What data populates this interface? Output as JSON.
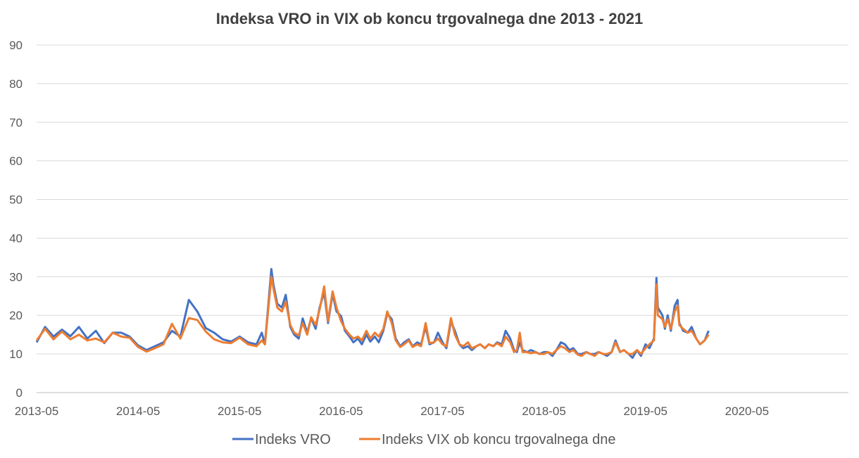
{
  "chart_data": {
    "type": "line",
    "title": "Indeksa VRO in VIX ob koncu trgovalnega dne 2013 - 2021",
    "xlabel": "",
    "ylabel": "",
    "ylim": [
      0,
      90
    ],
    "yticks": [
      0,
      10,
      20,
      30,
      40,
      50,
      60,
      70,
      80,
      90
    ],
    "xlim": [
      "2013-05",
      "2021-05"
    ],
    "xticks": [
      "2013-05",
      "2014-05",
      "2015-05",
      "2016-05",
      "2017-05",
      "2018-05",
      "2019-05",
      "2020-05"
    ],
    "grid": "horizontal",
    "legend": "bottom",
    "colors": [
      "#4472c4",
      "#ed7d31"
    ],
    "series": [
      {
        "name": "Indeks VRO",
        "points": [
          [
            "2013-05",
            13
          ],
          [
            "2013-06",
            17
          ],
          [
            "2013-07",
            14.5
          ],
          [
            "2013-08",
            16.3
          ],
          [
            "2013-09",
            14.6
          ],
          [
            "2013-10",
            17
          ],
          [
            "2013-11",
            14
          ],
          [
            "2013-12",
            16
          ],
          [
            "2014-01",
            12.8
          ],
          [
            "2014-02",
            15.5
          ],
          [
            "2014-03",
            15.5
          ],
          [
            "2014-04",
            14.5
          ],
          [
            "2014-05",
            12.2
          ],
          [
            "2014-06",
            11
          ],
          [
            "2014-07",
            12
          ],
          [
            "2014-08",
            13
          ],
          [
            "2014-09",
            16
          ],
          [
            "2014-10",
            14.5
          ],
          [
            "2014-11",
            24
          ],
          [
            "2014-12",
            21
          ],
          [
            "2015-01",
            16.7
          ],
          [
            "2015-02",
            15.5
          ],
          [
            "2015-03",
            13.8
          ],
          [
            "2015-04",
            13.2
          ],
          [
            "2015-05",
            14.5
          ],
          [
            "2015-06",
            13
          ],
          [
            "2015-07",
            12.5
          ],
          [
            "2015-07-20",
            15.5
          ],
          [
            "2015-08-01",
            12.5
          ],
          [
            "2015-08-24",
            32
          ],
          [
            "2015-09-01",
            28
          ],
          [
            "2015-09-15",
            23
          ],
          [
            "2015-10-01",
            22
          ],
          [
            "2015-10-15",
            25.3
          ],
          [
            "2015-11-01",
            17
          ],
          [
            "2015-11-15",
            15
          ],
          [
            "2015-12-01",
            14
          ],
          [
            "2015-12-15",
            19.2
          ],
          [
            "2016-01-01",
            15.5
          ],
          [
            "2016-01-15",
            19.3
          ],
          [
            "2016-02-01",
            16.5
          ],
          [
            "2016-02-15",
            22
          ],
          [
            "2016-03-01",
            26
          ],
          [
            "2016-03-15",
            18
          ],
          [
            "2016-04-01",
            25.6
          ],
          [
            "2016-04-15",
            21
          ],
          [
            "2016-05-01",
            19.8
          ],
          [
            "2016-05-15",
            16
          ],
          [
            "2016-06-01",
            14.5
          ],
          [
            "2016-06-15",
            13
          ],
          [
            "2016-07-01",
            14
          ],
          [
            "2016-07-15",
            12.5
          ],
          [
            "2016-08-01",
            15
          ],
          [
            "2016-08-15",
            13.2
          ],
          [
            "2016-09-01",
            14.5
          ],
          [
            "2016-09-15",
            13
          ],
          [
            "2016-10-01",
            16
          ],
          [
            "2016-10-15",
            20.5
          ],
          [
            "2016-11-01",
            19
          ],
          [
            "2016-11-15",
            14
          ],
          [
            "2016-12-01",
            12
          ],
          [
            "2016-12-15",
            13
          ],
          [
            "2017-01-01",
            13.8
          ],
          [
            "2017-01-15",
            12
          ],
          [
            "2017-02-01",
            13
          ],
          [
            "2017-02-15",
            12.5
          ],
          [
            "2017-03-01",
            17
          ],
          [
            "2017-03-15",
            12.5
          ],
          [
            "2017-04-01",
            13
          ],
          [
            "2017-04-15",
            15.5
          ],
          [
            "2017-05-01",
            13
          ],
          [
            "2017-05-15",
            11.5
          ],
          [
            "2017-06-01",
            18.5
          ],
          [
            "2017-06-15",
            16
          ],
          [
            "2017-07-01",
            12.5
          ],
          [
            "2017-07-15",
            11.5
          ],
          [
            "2017-08-01",
            12
          ],
          [
            "2017-08-15",
            11
          ],
          [
            "2017-09-01",
            12
          ],
          [
            "2017-09-15",
            12.5
          ],
          [
            "2017-10-01",
            11.5
          ],
          [
            "2017-10-15",
            12.5
          ],
          [
            "2017-11-01",
            12
          ],
          [
            "2017-11-15",
            13
          ],
          [
            "2017-12-01",
            12.5
          ],
          [
            "2017-12-15",
            16
          ],
          [
            "2018-01-01",
            14
          ],
          [
            "2018-01-15",
            11
          ],
          [
            "2018-01-25",
            10.5
          ],
          [
            "2018-02-05",
            13
          ],
          [
            "2018-02-15",
            11
          ],
          [
            "2018-03-01",
            10.5
          ],
          [
            "2018-03-15",
            11
          ],
          [
            "2018-04-01",
            10.5
          ],
          [
            "2018-04-15",
            10
          ],
          [
            "2018-05-01",
            10.5
          ],
          [
            "2018-05-15",
            10.5
          ],
          [
            "2018-06-01",
            9.5
          ],
          [
            "2018-06-15",
            11
          ],
          [
            "2018-07-01",
            13
          ],
          [
            "2018-07-15",
            12.5
          ],
          [
            "2018-08-01",
            11
          ],
          [
            "2018-08-15",
            11.5
          ],
          [
            "2018-09-01",
            10
          ],
          [
            "2018-09-15",
            10
          ],
          [
            "2018-10-01",
            10.5
          ],
          [
            "2018-10-15",
            10
          ],
          [
            "2018-11-01",
            10
          ],
          [
            "2018-11-15",
            10.5
          ],
          [
            "2018-12-01",
            10
          ],
          [
            "2018-12-15",
            9.5
          ],
          [
            "2019-01-01",
            10.5
          ],
          [
            "2019-01-15",
            13.5
          ],
          [
            "2019-02-01",
            10.5
          ],
          [
            "2019-02-15",
            11
          ],
          [
            "2019-03-01",
            10
          ],
          [
            "2019-03-15",
            9
          ],
          [
            "2019-04-01",
            11
          ],
          [
            "2019-04-15",
            9.5
          ],
          [
            "2019-05-01",
            12.5
          ],
          [
            "2019-05-15",
            11.5
          ],
          [
            "2019-06-01",
            14
          ],
          [
            "2019-06-10",
            29.7
          ],
          [
            "2019-06-15",
            22
          ],
          [
            "2019-07-01",
            20
          ],
          [
            "2019-07-10",
            16.5
          ],
          [
            "2019-07-20",
            20
          ],
          [
            "2019-08-01",
            16
          ],
          [
            "2019-08-15",
            22.5
          ],
          [
            "2019-08-25",
            24
          ],
          [
            "2019-09-01",
            18
          ],
          [
            "2019-09-15",
            16
          ],
          [
            "2019-10-01",
            15.5
          ],
          [
            "2019-10-15",
            17
          ],
          [
            "2019-11-01",
            14
          ],
          [
            "2019-11-15",
            12.5
          ],
          [
            "2019-12-01",
            13.5
          ],
          [
            "2019-12-15",
            16
          ]
        ]
      },
      {
        "name": "Indeks VIX ob koncu trgovalnega dne",
        "points": [
          [
            "2013-05",
            13.5
          ],
          [
            "2013-06",
            16.5
          ],
          [
            "2013-07",
            13.8
          ],
          [
            "2013-08",
            15.8
          ],
          [
            "2013-09",
            13.8
          ],
          [
            "2013-10",
            15
          ],
          [
            "2013-11",
            13.5
          ],
          [
            "2013-12",
            14
          ],
          [
            "2014-01",
            13
          ],
          [
            "2014-02",
            15.5
          ],
          [
            "2014-03",
            14.5
          ],
          [
            "2014-04",
            14.2
          ],
          [
            "2014-05",
            11.8
          ],
          [
            "2014-06",
            10.6
          ],
          [
            "2014-07",
            11.5
          ],
          [
            "2014-08",
            12.5
          ],
          [
            "2014-09",
            17.8
          ],
          [
            "2014-10",
            14
          ],
          [
            "2014-11",
            19.3
          ],
          [
            "2014-12",
            18.8
          ],
          [
            "2015-01",
            15.8
          ],
          [
            "2015-02",
            13.8
          ],
          [
            "2015-03",
            13
          ],
          [
            "2015-04",
            12.8
          ],
          [
            "2015-05",
            14.2
          ],
          [
            "2015-06",
            12.5
          ],
          [
            "2015-07",
            12
          ],
          [
            "2015-07-20",
            13.5
          ],
          [
            "2015-08-01",
            12.5
          ],
          [
            "2015-08-24",
            30
          ],
          [
            "2015-09-01",
            27
          ],
          [
            "2015-09-15",
            22
          ],
          [
            "2015-10-01",
            21
          ],
          [
            "2015-10-15",
            23.5
          ],
          [
            "2015-11-01",
            17.5
          ],
          [
            "2015-11-15",
            15.5
          ],
          [
            "2015-12-01",
            14.8
          ],
          [
            "2015-12-15",
            18
          ],
          [
            "2016-01-01",
            15
          ],
          [
            "2016-01-15",
            19.5
          ],
          [
            "2016-02-01",
            17.5
          ],
          [
            "2016-02-15",
            21.5
          ],
          [
            "2016-03-01",
            27.5
          ],
          [
            "2016-03-15",
            18.5
          ],
          [
            "2016-04-01",
            26.2
          ],
          [
            "2016-04-15",
            22
          ],
          [
            "2016-05-01",
            18.5
          ],
          [
            "2016-05-15",
            16.5
          ],
          [
            "2016-06-01",
            15
          ],
          [
            "2016-06-15",
            14
          ],
          [
            "2016-07-01",
            14.5
          ],
          [
            "2016-07-15",
            13.5
          ],
          [
            "2016-08-01",
            16
          ],
          [
            "2016-08-15",
            14
          ],
          [
            "2016-09-01",
            15.5
          ],
          [
            "2016-09-15",
            14.5
          ],
          [
            "2016-10-01",
            16.5
          ],
          [
            "2016-10-15",
            21
          ],
          [
            "2016-11-01",
            18
          ],
          [
            "2016-11-15",
            13.5
          ],
          [
            "2016-12-01",
            11.8
          ],
          [
            "2016-12-15",
            12.5
          ],
          [
            "2017-01-01",
            13.5
          ],
          [
            "2017-01-15",
            11.8
          ],
          [
            "2017-02-01",
            12.5
          ],
          [
            "2017-02-15",
            12
          ],
          [
            "2017-03-01",
            18
          ],
          [
            "2017-03-15",
            12.8
          ],
          [
            "2017-04-01",
            13
          ],
          [
            "2017-04-15",
            14
          ],
          [
            "2017-05-01",
            12.5
          ],
          [
            "2017-05-15",
            12
          ],
          [
            "2017-06-01",
            19.3
          ],
          [
            "2017-06-15",
            15
          ],
          [
            "2017-07-01",
            12.5
          ],
          [
            "2017-07-15",
            12
          ],
          [
            "2017-08-01",
            13
          ],
          [
            "2017-08-15",
            11.5
          ],
          [
            "2017-09-01",
            12
          ],
          [
            "2017-09-15",
            12.5
          ],
          [
            "2017-10-01",
            11.5
          ],
          [
            "2017-10-15",
            12.5
          ],
          [
            "2017-11-01",
            12
          ],
          [
            "2017-11-15",
            12.8
          ],
          [
            "2017-12-01",
            12
          ],
          [
            "2017-12-15",
            14.5
          ],
          [
            "2018-01-01",
            13
          ],
          [
            "2018-01-15",
            10.5
          ],
          [
            "2018-01-25",
            11
          ],
          [
            "2018-02-05",
            15.5
          ],
          [
            "2018-02-15",
            10.5
          ],
          [
            "2018-03-01",
            10.5
          ],
          [
            "2018-03-15",
            10.2
          ],
          [
            "2018-04-01",
            10.5
          ],
          [
            "2018-04-15",
            10
          ],
          [
            "2018-05-01",
            10
          ],
          [
            "2018-05-15",
            10.5
          ],
          [
            "2018-06-01",
            10
          ],
          [
            "2018-06-15",
            11
          ],
          [
            "2018-07-01",
            12
          ],
          [
            "2018-07-15",
            11.5
          ],
          [
            "2018-08-01",
            10.5
          ],
          [
            "2018-08-15",
            11
          ],
          [
            "2018-09-01",
            9.8
          ],
          [
            "2018-09-15",
            9.5
          ],
          [
            "2018-10-01",
            10.5
          ],
          [
            "2018-10-15",
            10
          ],
          [
            "2018-11-01",
            9.5
          ],
          [
            "2018-11-15",
            10.5
          ],
          [
            "2018-12-01",
            10
          ],
          [
            "2018-12-15",
            10
          ],
          [
            "2019-01-01",
            10.5
          ],
          [
            "2019-01-15",
            13
          ],
          [
            "2019-02-01",
            10.5
          ],
          [
            "2019-02-15",
            11
          ],
          [
            "2019-03-01",
            10
          ],
          [
            "2019-03-15",
            10
          ],
          [
            "2019-04-01",
            11
          ],
          [
            "2019-04-15",
            10
          ],
          [
            "2019-05-01",
            11.5
          ],
          [
            "2019-05-15",
            12.5
          ],
          [
            "2019-06-01",
            13.5
          ],
          [
            "2019-06-10",
            28
          ],
          [
            "2019-06-15",
            20
          ],
          [
            "2019-07-01",
            19
          ],
          [
            "2019-07-10",
            17
          ],
          [
            "2019-07-20",
            19
          ],
          [
            "2019-08-01",
            16.5
          ],
          [
            "2019-08-15",
            21
          ],
          [
            "2019-08-25",
            22.5
          ],
          [
            "2019-09-01",
            17.5
          ],
          [
            "2019-09-15",
            16.5
          ],
          [
            "2019-10-01",
            15.5
          ],
          [
            "2019-10-15",
            16
          ],
          [
            "2019-11-01",
            14
          ],
          [
            "2019-11-15",
            12.5
          ],
          [
            "2019-12-01",
            13.5
          ],
          [
            "2019-12-15",
            15
          ]
        ]
      }
    ]
  }
}
